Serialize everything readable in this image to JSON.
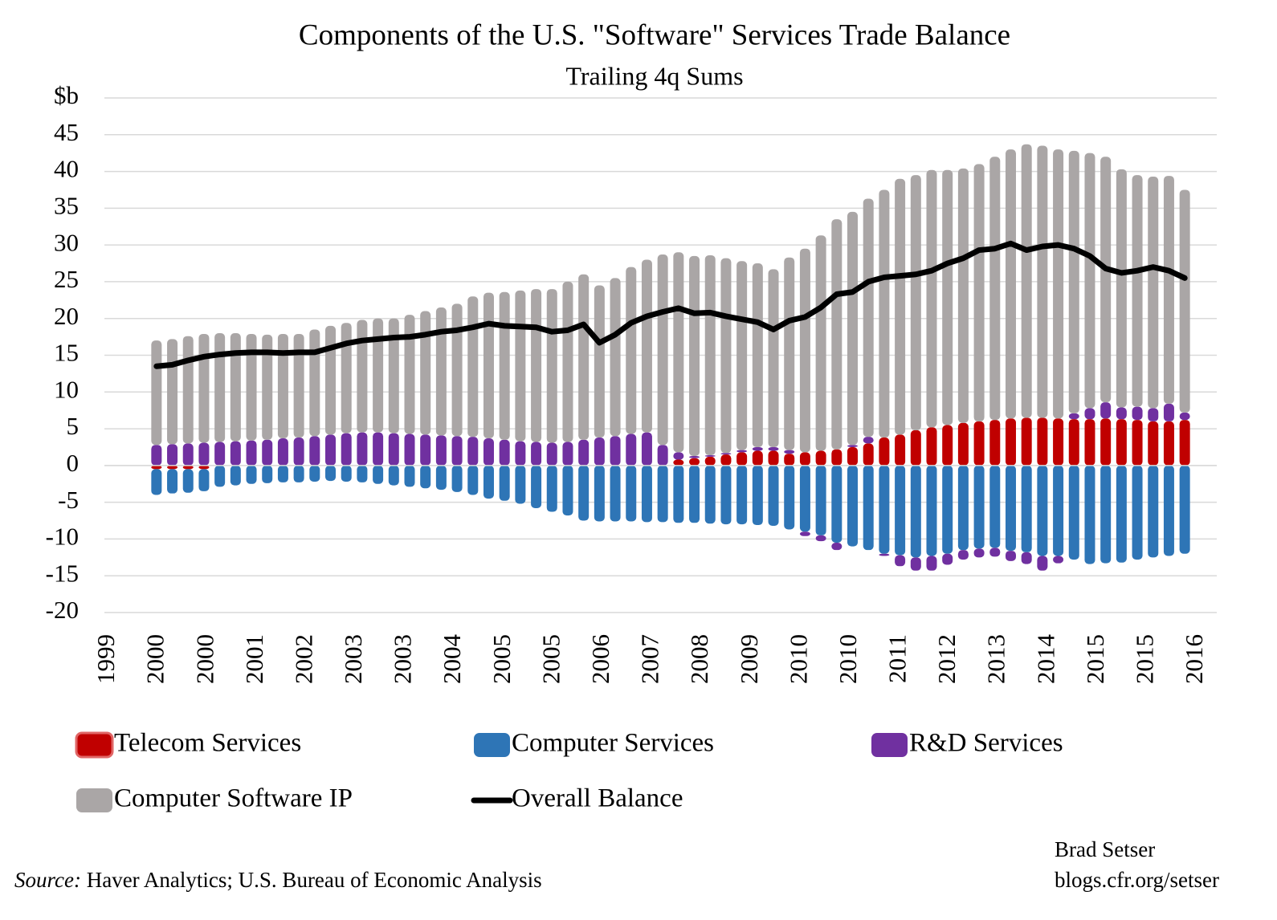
{
  "chart_data": {
    "type": "bar",
    "stacked": true,
    "title": "Components of the U.S. \"Software\" Services Trade Balance",
    "subtitle": "Trailing 4q Sums",
    "ylim": [
      -20,
      50
    ],
    "yticks": [
      -20,
      -15,
      -10,
      -5,
      0,
      5,
      10,
      15,
      20,
      25,
      30,
      35,
      40,
      45,
      {
        "value": 50,
        "label": "$b"
      }
    ],
    "grid": true,
    "xtick_labels": [
      "1999",
      "2000",
      "2000",
      "2001",
      "2002",
      "2003",
      "2003",
      "2004",
      "2005",
      "2005",
      "2006",
      "2007",
      "2008",
      "2009",
      "2010",
      "2010",
      "2011",
      "2012",
      "2013",
      "2014",
      "2015",
      "2015",
      "2016"
    ],
    "series": [
      {
        "name": "Telecom Services",
        "color": "#c00000",
        "values": [
          -0.5,
          -0.5,
          -0.5,
          -0.5,
          0,
          0,
          0,
          0,
          0,
          0,
          0,
          0,
          0,
          0,
          0,
          0,
          0,
          0,
          0,
          0,
          0,
          0,
          0,
          0,
          0,
          0,
          0,
          0,
          0,
          0,
          0,
          0,
          0,
          0.8,
          1,
          1.2,
          1.5,
          1.8,
          2,
          2,
          1.6,
          1.8,
          2,
          2.2,
          2.5,
          3,
          3.8,
          4.2,
          4.8,
          5.2,
          5.5,
          5.8,
          6,
          6.2,
          6.4,
          6.5,
          6.5,
          6.4,
          6.3,
          6.3,
          6.4,
          6.3,
          6.2,
          6,
          6,
          6.2
        ]
      },
      {
        "name": "Computer Services",
        "color": "#2e75b6",
        "values": [
          -3.5,
          -3.3,
          -3.2,
          -3,
          -2.9,
          -2.7,
          -2.5,
          -2.4,
          -2.3,
          -2.3,
          -2.2,
          -2.1,
          -2.2,
          -2.3,
          -2.5,
          -2.7,
          -2.9,
          -3.1,
          -3.3,
          -3.6,
          -4,
          -4.5,
          -4.8,
          -5.2,
          -5.8,
          -6.3,
          -6.8,
          -7.5,
          -7.6,
          -7.6,
          -7.6,
          -7.7,
          -7.7,
          -7.8,
          -7.8,
          -7.9,
          -8,
          -8,
          -8.1,
          -8.2,
          -8.7,
          -9,
          -9.5,
          -10.5,
          -11,
          -11.5,
          -12,
          -12.2,
          -12.5,
          -12.3,
          -12,
          -11.5,
          -11.3,
          -11.2,
          -11.6,
          -11.8,
          -12.3,
          -12.3,
          -12.8,
          -13.4,
          -13.3,
          -13.2,
          -12.8,
          -12.5,
          -12.3,
          -12
        ]
      },
      {
        "name": "R&D Services",
        "color": "#7030a0",
        "values": [
          2.8,
          2.9,
          3,
          3.1,
          3.2,
          3.3,
          3.4,
          3.5,
          3.7,
          3.8,
          4,
          4.2,
          4.4,
          4.5,
          4.5,
          4.4,
          4.3,
          4.2,
          4.1,
          4,
          3.9,
          3.7,
          3.5,
          3.3,
          3.2,
          3.1,
          3.2,
          3.5,
          3.8,
          4,
          4.3,
          4.5,
          2.8,
          1,
          0.3,
          0.2,
          0.2,
          0.3,
          0.5,
          0.5,
          0.5,
          -0.6,
          -0.8,
          -1,
          0.3,
          0.9,
          -0.3,
          -1.5,
          -1.8,
          -2,
          -1.5,
          -1.3,
          -1.2,
          -1.2,
          -1.4,
          -1.6,
          -2,
          -1,
          0.8,
          1.5,
          2.2,
          1.6,
          1.8,
          1.8,
          2.4,
          1
        ]
      },
      {
        "name": "Computer Software IP",
        "color": "#aaa6a6",
        "values": [
          14.2,
          14.3,
          14.6,
          14.8,
          14.8,
          14.7,
          14.5,
          14.3,
          14.2,
          14.1,
          14.5,
          14.8,
          15,
          15.3,
          15.5,
          15.6,
          16.2,
          16.8,
          17.4,
          18,
          19.1,
          19.8,
          20.1,
          20.5,
          20.8,
          20.9,
          21.8,
          22.5,
          20.7,
          21.5,
          22.7,
          23.5,
          25.9,
          27.2,
          27.2,
          27.2,
          26.5,
          25.7,
          25,
          24.2,
          26.2,
          27.7,
          29.3,
          31.3,
          31.7,
          32.4,
          33.7,
          34.8,
          34.7,
          35,
          34.7,
          34.6,
          35,
          35.8,
          36.6,
          37.2,
          37,
          36.6,
          35.7,
          34.7,
          33.4,
          32.4,
          31.5,
          31.5,
          31,
          30.3
        ]
      },
      {
        "name": "Overall Balance",
        "type": "line",
        "color": "#000000",
        "values": [
          13.5,
          13.7,
          14.3,
          14.8,
          15.1,
          15.3,
          15.4,
          15.4,
          15.3,
          15.4,
          15.4,
          16,
          16.6,
          17,
          17.2,
          17.4,
          17.5,
          17.8,
          18.2,
          18.4,
          18.8,
          19.3,
          19,
          18.9,
          18.8,
          18.2,
          18.4,
          19.2,
          16.7,
          17.8,
          19.4,
          20.3,
          20.9,
          21.4,
          20.7,
          20.8,
          20.3,
          19.9,
          19.5,
          18.5,
          19.7,
          20.2,
          21.5,
          23.3,
          23.6,
          25,
          25.6,
          25.8,
          26,
          26.5,
          27.5,
          28.2,
          29.3,
          29.5,
          30.2,
          29.3,
          29.8,
          30,
          29.5,
          28.5,
          26.8,
          26.2,
          26.5,
          27,
          26.5,
          25.5
        ]
      }
    ],
    "source_label": "Source:",
    "source": "Haver Analytics; U.S. Bureau of Economic Analysis",
    "credit": [
      "Brad Setser",
      "blogs.cfr.org/setser"
    ]
  }
}
